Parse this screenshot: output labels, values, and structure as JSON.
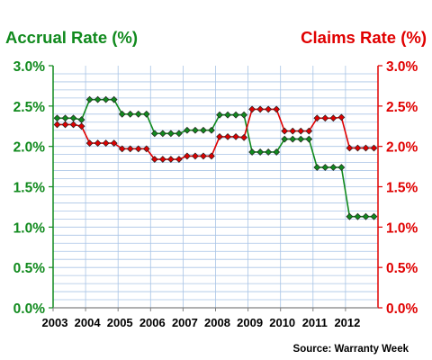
{
  "chart_data": {
    "type": "line",
    "title_left": "Accrual Rate (%)",
    "title_right": "Claims Rate (%)",
    "source": "Source: Warranty Week",
    "x_tick_labels": [
      "2003",
      "2004",
      "2005",
      "2006",
      "2007",
      "2008",
      "2009",
      "2010",
      "2011",
      "2012"
    ],
    "y_tick_labels_left": [
      "0.0%",
      "0.5%",
      "1.0%",
      "1.5%",
      "2.0%",
      "2.5%",
      "3.0%"
    ],
    "y_tick_labels_right": [
      "0.0%",
      "0.5%",
      "1.0%",
      "1.5%",
      "2.0%",
      "2.5%",
      "3.0%"
    ],
    "ylim_left": [
      0,
      3.0
    ],
    "ylim_right": [
      0,
      3.0
    ],
    "grid": true,
    "colors": {
      "accrual": "#118a1e",
      "claims": "#e00000",
      "grid": "#a9c4e6",
      "axis": "#808080"
    },
    "series": [
      {
        "key": "accrual",
        "axis": "left",
        "quarters": [
          "2003 Q1",
          "2003 Q2",
          "2003 Q3",
          "2003 Q4",
          "2004 Q1",
          "2004 Q2",
          "2004 Q3",
          "2004 Q4",
          "2005 Q1",
          "2005 Q2",
          "2005 Q3",
          "2005 Q4",
          "2006 Q1",
          "2006 Q2",
          "2006 Q3",
          "2006 Q4",
          "2007 Q1",
          "2007 Q2",
          "2007 Q3",
          "2007 Q4",
          "2008 Q1",
          "2008 Q2",
          "2008 Q3",
          "2008 Q4",
          "2009 Q1",
          "2009 Q2",
          "2009 Q3",
          "2009 Q4",
          "2010 Q1",
          "2010 Q2",
          "2010 Q3",
          "2010 Q4",
          "2011 Q1",
          "2011 Q2",
          "2011 Q3",
          "2011 Q4",
          "2012 Q1",
          "2012 Q2",
          "2012 Q3",
          "2012 Q4"
        ],
        "values": [
          2.35,
          2.35,
          2.35,
          2.33,
          2.58,
          2.58,
          2.58,
          2.58,
          2.4,
          2.4,
          2.4,
          2.4,
          2.16,
          2.16,
          2.16,
          2.16,
          2.2,
          2.2,
          2.2,
          2.2,
          2.39,
          2.39,
          2.39,
          2.39,
          1.93,
          1.93,
          1.93,
          1.93,
          2.09,
          2.09,
          2.09,
          2.09,
          1.74,
          1.74,
          1.74,
          1.74,
          1.13,
          1.13,
          1.13,
          1.13
        ]
      },
      {
        "key": "claims",
        "axis": "right",
        "quarters": [
          "2003 Q1",
          "2003 Q2",
          "2003 Q3",
          "2003 Q4",
          "2004 Q1",
          "2004 Q2",
          "2004 Q3",
          "2004 Q4",
          "2005 Q1",
          "2005 Q2",
          "2005 Q3",
          "2005 Q4",
          "2006 Q1",
          "2006 Q2",
          "2006 Q3",
          "2006 Q4",
          "2007 Q1",
          "2007 Q2",
          "2007 Q3",
          "2007 Q4",
          "2008 Q1",
          "2008 Q2",
          "2008 Q3",
          "2008 Q4",
          "2009 Q1",
          "2009 Q2",
          "2009 Q3",
          "2009 Q4",
          "2010 Q1",
          "2010 Q2",
          "2010 Q3",
          "2010 Q4",
          "2011 Q1",
          "2011 Q2",
          "2011 Q3",
          "2011 Q4",
          "2012 Q1",
          "2012 Q2",
          "2012 Q3",
          "2012 Q4"
        ],
        "values": [
          2.27,
          2.27,
          2.27,
          2.25,
          2.04,
          2.04,
          2.04,
          2.04,
          1.97,
          1.97,
          1.97,
          1.97,
          1.84,
          1.84,
          1.84,
          1.84,
          1.88,
          1.88,
          1.88,
          1.88,
          2.12,
          2.12,
          2.12,
          2.11,
          2.46,
          2.46,
          2.46,
          2.46,
          2.19,
          2.19,
          2.19,
          2.19,
          2.35,
          2.35,
          2.35,
          2.36,
          1.98,
          1.98,
          1.98,
          1.98
        ]
      }
    ]
  }
}
